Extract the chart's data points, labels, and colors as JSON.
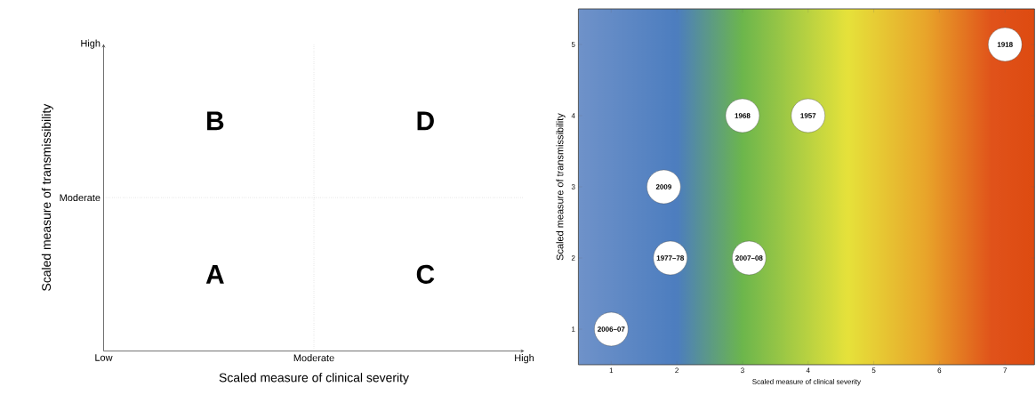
{
  "chart_data": [
    {
      "type": "other",
      "xlabel": "Scaled measure of clinical severity",
      "ylabel": "Scaled measure of transmissibility",
      "categories": [
        "Low",
        "Moderate",
        "High"
      ],
      "y_categories": [
        "High",
        "Moderate",
        null
      ],
      "annotations": [
        "A",
        "B",
        "C",
        "D"
      ]
    },
    {
      "type": "scatter",
      "xlabel": "Scaled measure of clinical severity",
      "ylabel": "Scaled measure of transmissibility",
      "xlim": [
        0.5,
        7.45
      ],
      "ylim": [
        0.5,
        5.5
      ],
      "xticks": [
        1,
        2,
        3,
        4,
        5,
        6,
        7
      ],
      "yticks": [
        1,
        2,
        3,
        4,
        5
      ],
      "marker": "circle",
      "color": "#ffffff",
      "x": [
        1,
        1.8,
        1.9,
        3,
        3.1,
        4,
        7
      ],
      "values": [
        1,
        3,
        2,
        4,
        2,
        4,
        5
      ],
      "annotations": [
        {
          "text": "2006–07",
          "x": 1,
          "y": 1
        },
        {
          "text": "2009",
          "x": 1.8,
          "y": 3
        },
        {
          "text": "1977–78",
          "x": 1.9,
          "y": 2
        },
        {
          "text": "1968",
          "x": 3,
          "y": 4
        },
        {
          "text": "2007–08",
          "x": 3.1,
          "y": 2
        },
        {
          "text": "1957",
          "x": 4,
          "y": 4
        },
        {
          "text": "1918",
          "x": 7,
          "y": 5
        }
      ]
    }
  ]
}
